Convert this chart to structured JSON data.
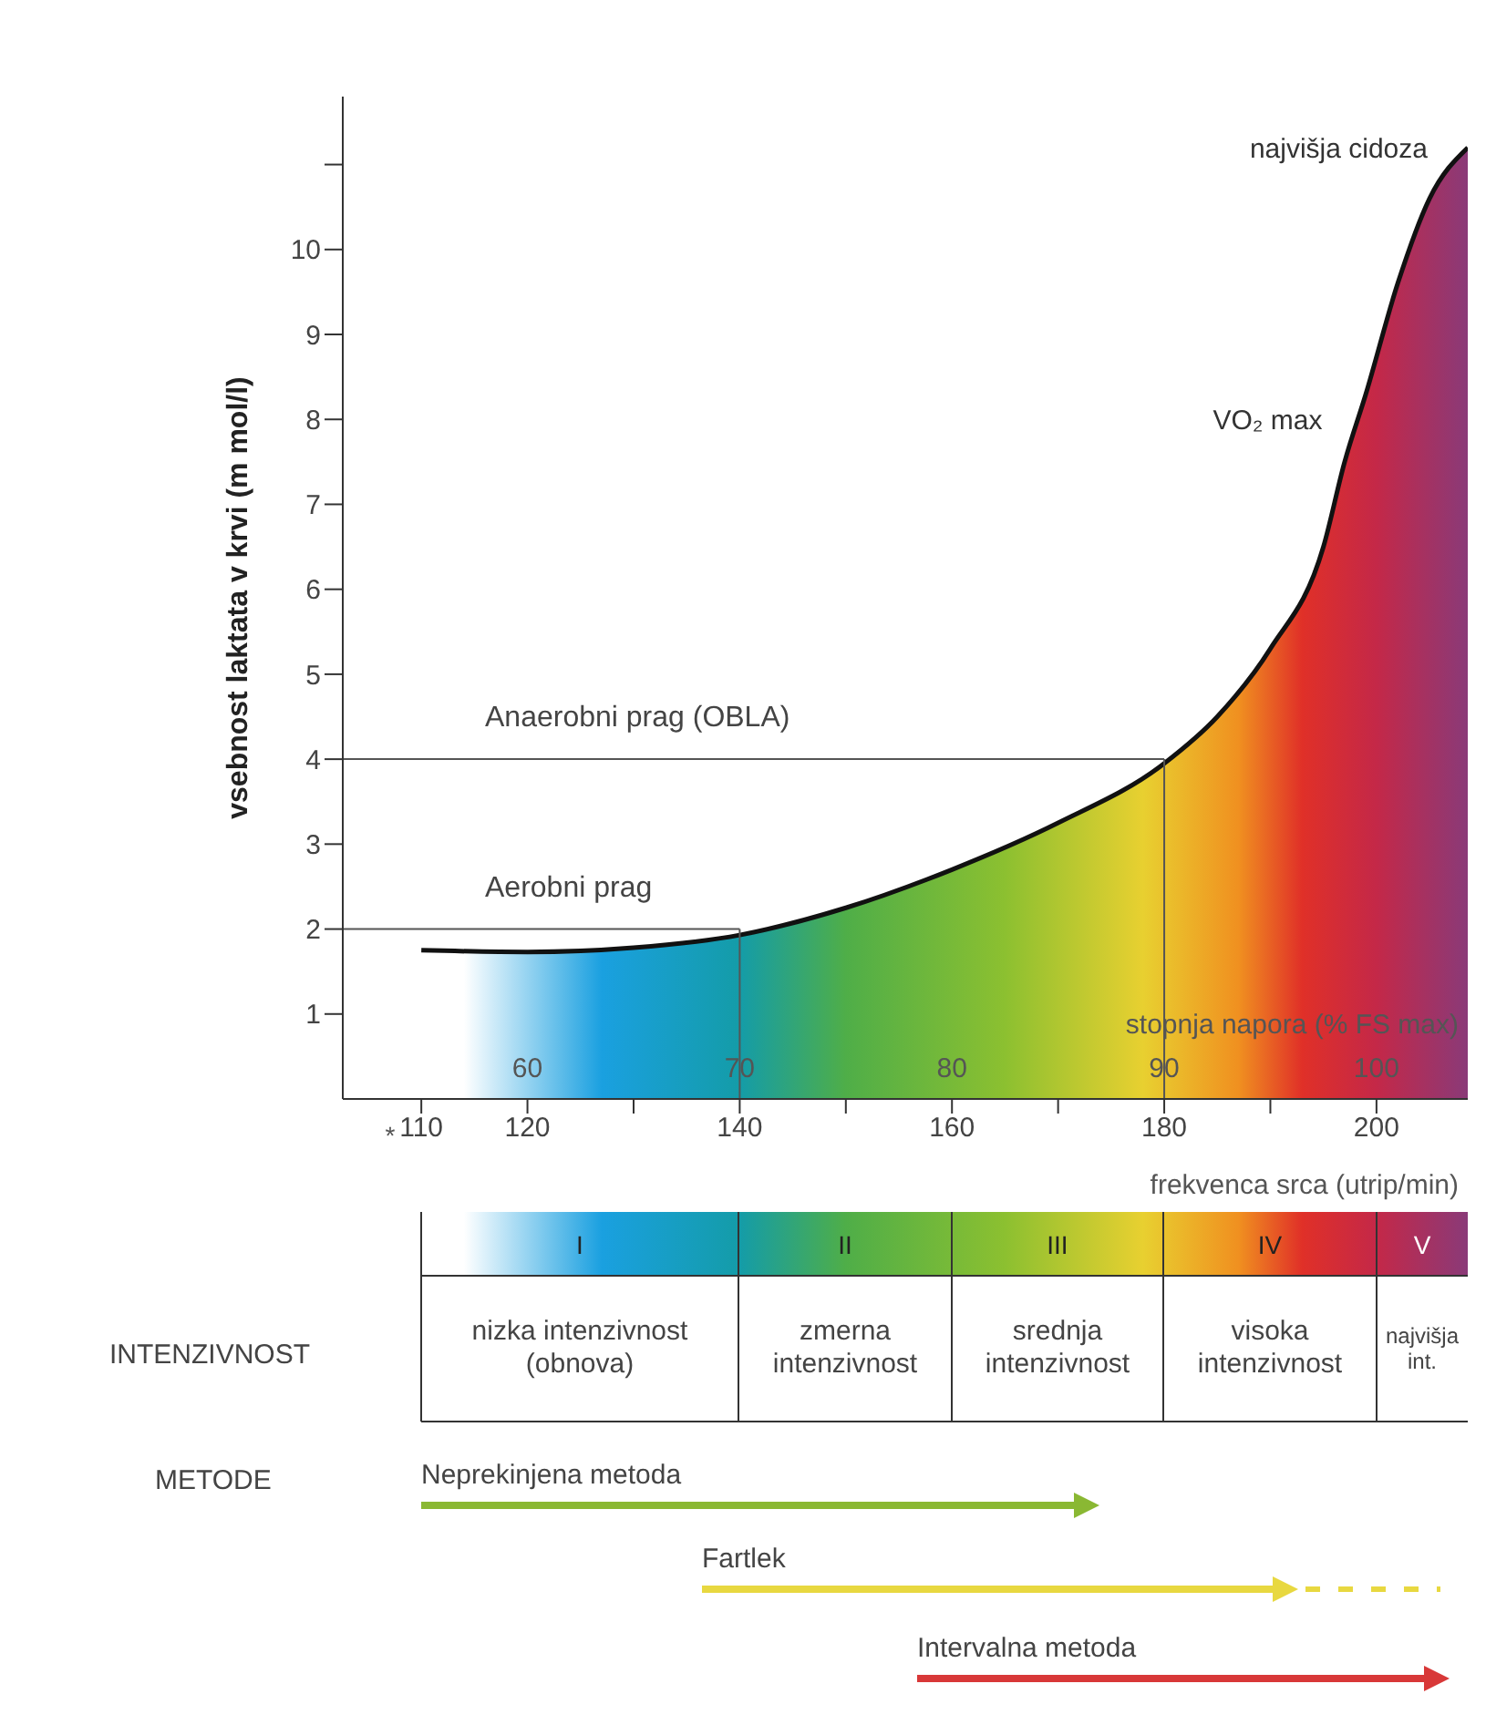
{
  "chart_data": {
    "type": "area",
    "ylabel": "vsebnost laktata v krvi (m mol/l)",
    "xlabel": "frekvenca srca (utrip/min)",
    "x2label": "stopnja napora (% FS max)",
    "x": [
      110,
      120,
      130,
      140,
      150,
      160,
      170,
      180,
      185,
      190,
      195,
      197,
      199,
      202,
      205,
      208.6
    ],
    "series": [
      {
        "color": "#111111",
        "values": [
          1.75,
          1.73,
          1.78,
          1.93,
          2.25,
          2.7,
          3.25,
          3.95,
          4.5,
          5.3,
          6.5,
          7.5,
          8.3,
          9.6,
          10.6,
          11.2
        ]
      }
    ],
    "xlim": [
      102.6,
      208.6
    ],
    "xticks": [
      110,
      120,
      {
        "value": 130,
        "label": null
      },
      140,
      {
        "value": 150,
        "label": null
      },
      160,
      {
        "value": 170,
        "label": null
      },
      180,
      {
        "value": 190,
        "label": null
      },
      200
    ],
    "x2lim": [
      51.3,
      104.3
    ],
    "x2ticks": [
      60,
      70,
      80,
      90,
      100
    ],
    "ylim": [
      0,
      11.8
    ],
    "yticks": [
      1,
      2,
      3,
      4,
      5,
      6,
      7,
      8,
      9,
      10,
      {
        "value": 11,
        "label": null
      }
    ],
    "ref_lines": [
      {
        "axis": "y",
        "value": 4,
        "label": "Anaerobni prag (OBLA)"
      },
      {
        "axis": "x",
        "value": 180,
        "label": null
      },
      {
        "axis": "y",
        "value": 2,
        "label": "Aerobni prag"
      },
      {
        "axis": "x",
        "value": 140,
        "label": null
      }
    ],
    "annotations": [
      {
        "text": "najvišja cidoza",
        "x": 208.6,
        "y": 11.2
      },
      {
        "text": "VO₂ max",
        "x": 197.3,
        "y": 8
      },
      "*",
      "I",
      "II",
      "III",
      "IV",
      "V",
      "INTENZIVNOST",
      "nizka intenzivnost (obnova)",
      "zmerna intenzivnost",
      "srednja intenzivnost",
      "visoka intenzivnost",
      "najvišja int.",
      "METODE",
      "Neprekinjena metoda",
      "Fartlek",
      "Intervalna metoda"
    ]
  }
}
